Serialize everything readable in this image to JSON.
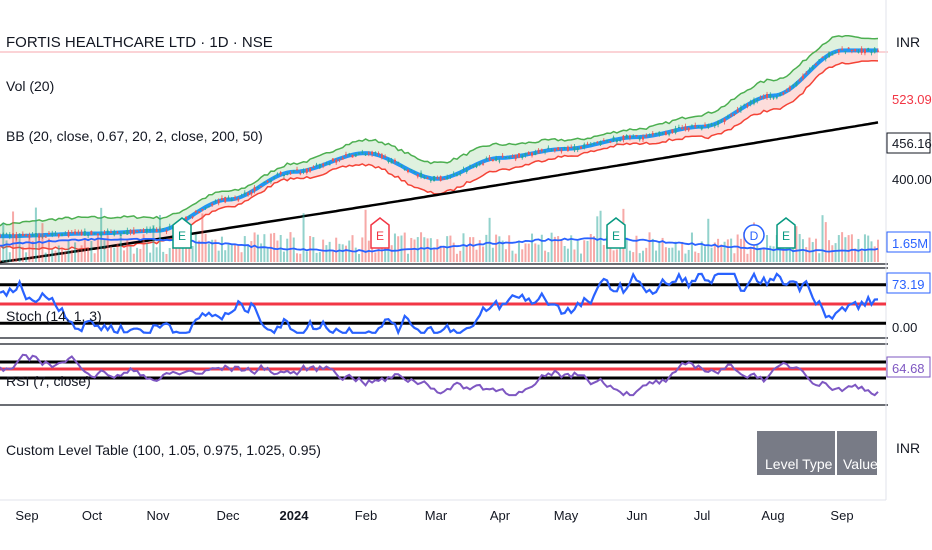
{
  "symbol_title": "FORTIS HEALTHCARE LTD · 1D · NSE",
  "currency": "INR",
  "legends": {
    "volume": "Vol (20)",
    "bollinger": "BB (20, close, 0.67, 20, 2, close, 200, 50)",
    "stoch": "Stoch (14, 1, 3)",
    "rsi": "RSI (7, close)",
    "custom_table": "Custom Level Table (100, 1.05, 0.975, 1.025, 0.95)"
  },
  "price_axis": {
    "labels": [
      {
        "text": "523.09",
        "value": 523.09,
        "color": "#f23645"
      },
      {
        "text": "456.16",
        "value": 456.16,
        "color": "#131722",
        "boxed": true
      },
      {
        "text": "400.00",
        "value": 400.0,
        "color": "#131722"
      }
    ],
    "volume_label": {
      "text": "1.65M",
      "color": "#2962ff"
    },
    "stoch_labels": [
      {
        "text": "73.19",
        "color": "#2962ff"
      },
      {
        "text": "0.00",
        "color": "#131722"
      }
    ],
    "rsi_label": {
      "text": "64.68",
      "color": "#7e57c2"
    }
  },
  "custom_table": {
    "headers": [
      "Level Type",
      "Value"
    ]
  },
  "colors": {
    "up": "#26a69a",
    "down": "#ef5350",
    "bb_upper": "#4caf50",
    "bb_lower": "#f44336",
    "basis": "#2196f3",
    "ma200": "#000000",
    "volume_ma": "#2962ff",
    "stoch": "#2962ff",
    "rsi": "#7e57c2"
  },
  "event_markers": [
    {
      "label": "E",
      "color": "#089981",
      "x_month": "Nov"
    },
    {
      "label": "E",
      "color": "#f23645",
      "x_month": "Feb"
    },
    {
      "label": "E",
      "color": "#089981",
      "x_month": "Jun"
    },
    {
      "label": "D",
      "color": "#2962ff",
      "x_month": "Aug"
    },
    {
      "label": "E",
      "color": "#089981",
      "x_month": "Aug"
    }
  ],
  "chart_data": {
    "type": "line",
    "x_ticks": [
      "Sep",
      "Oct",
      "Nov",
      "Dec",
      "2024",
      "Feb",
      "Mar",
      "Apr",
      "May",
      "Jun",
      "Jul",
      "Aug",
      "Sep"
    ],
    "x_tick_bold": [
      false,
      false,
      false,
      false,
      true,
      false,
      false,
      false,
      false,
      false,
      false,
      false,
      false
    ],
    "price_anchor": {
      "dates": [
        "Sep",
        "Oct",
        "Nov",
        "Dec",
        "2024",
        "Feb",
        "Mar",
        "Apr",
        "May",
        "Jun",
        "Jul",
        "Aug",
        "Sep"
      ],
      "close": [
        292,
        296,
        300,
        345,
        385,
        412,
        375,
        405,
        418,
        435,
        450,
        495,
        560
      ]
    },
    "ma200_range": [
      300,
      456.16
    ],
    "stoch_levels": [
      80,
      50,
      20
    ],
    "rsi_levels": [
      70,
      50,
      30
    ],
    "last_values": {
      "price": 523.09,
      "ma200": 456.16,
      "volume": "1.65M",
      "stoch": 73.19,
      "rsi": 64.68
    }
  }
}
